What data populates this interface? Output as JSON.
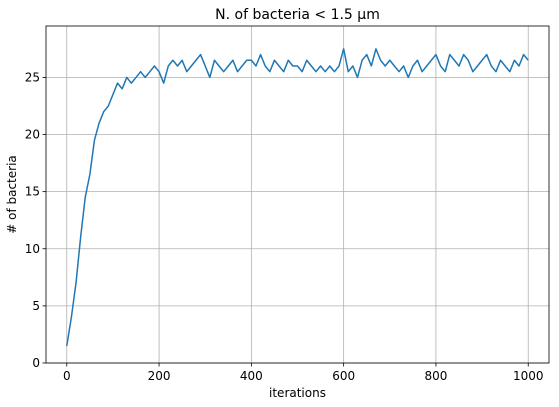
{
  "chart_data": {
    "type": "line",
    "title": "N. of bacteria < 1.5 μm",
    "xlabel": "iterations",
    "ylabel": "# of bacteria",
    "xlim": [
      -45,
      1045
    ],
    "ylim": [
      0,
      29.5
    ],
    "xticks": [
      0,
      200,
      400,
      600,
      800,
      1000
    ],
    "yticks": [
      0,
      5,
      10,
      15,
      20,
      25
    ],
    "grid": true,
    "legend": "none",
    "colors": {
      "line": "#1f77b4",
      "grid": "#b0b0b0"
    },
    "series": [
      {
        "x": [
          0,
          10,
          20,
          30,
          40,
          50,
          60,
          70,
          80,
          90,
          100,
          110,
          120,
          130,
          140,
          150,
          160,
          170,
          180,
          190,
          200,
          210,
          220,
          230,
          240,
          250,
          260,
          270,
          280,
          290,
          300,
          310,
          320,
          330,
          340,
          350,
          360,
          370,
          380,
          390,
          400,
          410,
          420,
          430,
          440,
          450,
          460,
          470,
          480,
          490,
          500,
          510,
          520,
          530,
          540,
          550,
          560,
          570,
          580,
          590,
          600,
          610,
          620,
          630,
          640,
          650,
          660,
          670,
          680,
          690,
          700,
          710,
          720,
          730,
          740,
          750,
          760,
          770,
          780,
          790,
          800,
          810,
          820,
          830,
          840,
          850,
          860,
          870,
          880,
          890,
          900,
          910,
          920,
          930,
          940,
          950,
          960,
          970,
          980,
          990,
          1000
        ],
        "values": [
          1.5,
          4.0,
          7.0,
          11.0,
          14.5,
          16.5,
          19.5,
          21.0,
          22.0,
          22.5,
          23.5,
          24.5,
          24.0,
          25.0,
          24.5,
          25.0,
          25.5,
          25.0,
          25.5,
          26.0,
          25.5,
          24.5,
          26.0,
          26.5,
          26.0,
          26.5,
          25.5,
          26.0,
          26.5,
          27.0,
          26.0,
          25.0,
          26.5,
          26.0,
          25.5,
          26.0,
          26.5,
          25.5,
          26.0,
          26.5,
          26.5,
          26.0,
          27.0,
          26.0,
          25.5,
          26.5,
          26.0,
          25.5,
          26.5,
          26.0,
          26.0,
          25.5,
          26.5,
          26.0,
          25.5,
          26.0,
          25.5,
          26.0,
          25.5,
          26.0,
          27.5,
          25.5,
          26.0,
          25.0,
          26.5,
          27.0,
          26.0,
          27.5,
          26.5,
          26.0,
          26.5,
          26.0,
          25.5,
          26.0,
          25.0,
          26.0,
          26.5,
          25.5,
          26.0,
          26.5,
          27.0,
          26.0,
          25.5,
          27.0,
          26.5,
          26.0,
          27.0,
          26.5,
          25.5,
          26.0,
          26.5,
          27.0,
          26.0,
          25.5,
          26.5,
          26.0,
          25.5,
          26.5,
          26.0,
          27.0,
          26.5
        ]
      }
    ]
  }
}
